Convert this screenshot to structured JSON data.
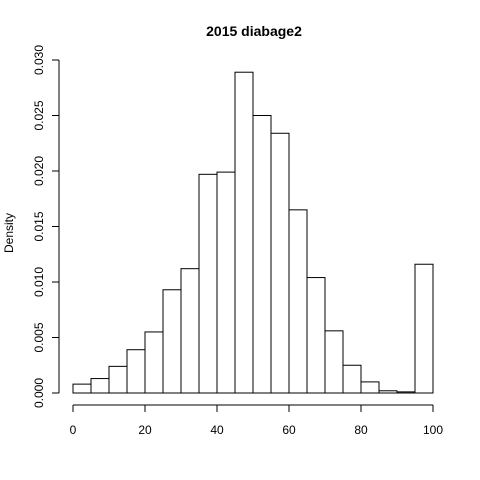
{
  "chart_data": {
    "type": "bar",
    "title": "2015 diabage2",
    "xlabel": "",
    "ylabel": "Density",
    "bin_edges": [
      0,
      5,
      10,
      15,
      20,
      25,
      30,
      35,
      40,
      45,
      50,
      55,
      60,
      65,
      70,
      75,
      80,
      85,
      90,
      95,
      100
    ],
    "values": [
      0.0008,
      0.0013,
      0.0024,
      0.0039,
      0.0055,
      0.0093,
      0.0112,
      0.0197,
      0.0199,
      0.0289,
      0.025,
      0.0234,
      0.0165,
      0.0104,
      0.0056,
      0.0025,
      0.001,
      0.0002,
      0.0001,
      0.0116
    ],
    "xlim": [
      0,
      100
    ],
    "ylim": [
      0,
      0.03
    ],
    "x_ticks": [
      0,
      20,
      40,
      60,
      80,
      100
    ],
    "y_ticks": [
      0,
      0.005,
      0.01,
      0.015,
      0.02,
      0.025,
      0.03
    ],
    "x_tick_labels": [
      "0",
      "20",
      "40",
      "60",
      "80",
      "100"
    ],
    "y_tick_labels": [
      "0.000",
      "0.005",
      "0.010",
      "0.015",
      "0.020",
      "0.025",
      "0.030"
    ],
    "grid": false,
    "legend": "none"
  }
}
